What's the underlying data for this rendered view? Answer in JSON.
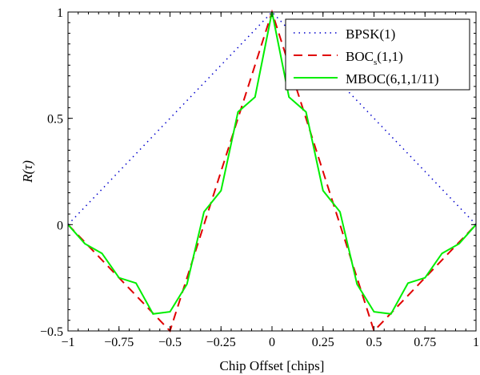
{
  "chart_data": {
    "type": "line",
    "title": "",
    "xlabel": "Chip Offset [chips]",
    "ylabel": "R(τ)",
    "xlim": [
      -1,
      1
    ],
    "ylim": [
      -0.5,
      1
    ],
    "xticks": [
      -1,
      -0.75,
      -0.5,
      -0.25,
      0,
      0.25,
      0.5,
      0.75,
      1
    ],
    "xtick_labels": [
      "−1",
      "−0.75",
      "−0.5",
      "−0.25",
      "0",
      "0.25",
      "0.5",
      "0.75",
      "1"
    ],
    "yticks": [
      -0.5,
      0,
      0.5,
      1
    ],
    "ytick_labels": [
      "−0.5",
      "0",
      "0.5",
      "1"
    ],
    "grid": false,
    "legend_position": "top-right",
    "series": [
      {
        "name": "BPSK(1)",
        "legend_main": "BPSK(1)",
        "color": "#0000cc",
        "style": "dotted",
        "x": [
          -1,
          0,
          1
        ],
        "y": [
          0,
          1,
          0
        ]
      },
      {
        "name": "BOCs(1,1)",
        "legend_main": "BOC",
        "legend_sub": "s",
        "legend_tail": "(1,1)",
        "color": "#e00000",
        "style": "dashed",
        "x": [
          -1,
          -0.5,
          0,
          0.5,
          1
        ],
        "y": [
          0,
          -0.5,
          1,
          -0.5,
          0
        ]
      },
      {
        "name": "MBOC(6,1,1/11)",
        "legend_main": "MBOC(6,1,1/11)",
        "color": "#00ee00",
        "style": "solid",
        "x": [
          -1,
          -0.9167,
          -0.8333,
          -0.75,
          -0.6667,
          -0.5833,
          -0.5,
          -0.4167,
          -0.3333,
          -0.25,
          -0.1667,
          -0.0833,
          0,
          0.0833,
          0.1667,
          0.25,
          0.3333,
          0.4167,
          0.5,
          0.5833,
          0.6667,
          0.75,
          0.8333,
          0.9167,
          1
        ],
        "y": [
          0,
          -0.09,
          -0.135,
          -0.25,
          -0.275,
          -0.42,
          -0.41,
          -0.28,
          0.06,
          0.16,
          0.53,
          0.6,
          1,
          0.6,
          0.53,
          0.16,
          0.06,
          -0.28,
          -0.41,
          -0.42,
          -0.275,
          -0.25,
          -0.135,
          -0.09,
          0
        ]
      }
    ]
  }
}
